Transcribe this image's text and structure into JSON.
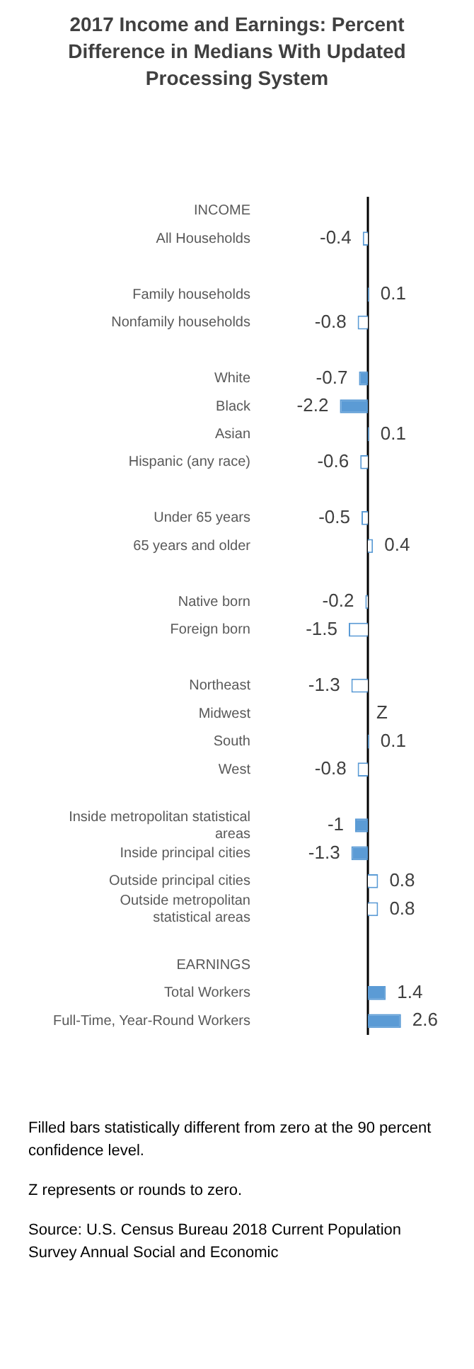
{
  "chart_data": {
    "type": "bar",
    "orientation": "horizontal",
    "title": "2017 Income and Earnings: Percent Difference in Medians With Updated Processing System",
    "categories": [
      "INCOME",
      "All Households",
      null,
      "Family households",
      "Nonfamily households",
      null,
      "White",
      "Black",
      "Asian",
      "Hispanic (any race)",
      null,
      "Under 65 years",
      "65 years and older",
      null,
      "Native born",
      "Foreign born",
      null,
      "Northeast",
      "Midwest",
      "South",
      "West",
      null,
      "Inside metropolitan statistical areas",
      "Inside principal cities",
      "Outside principal cities",
      "Outside metropolitan statistical areas",
      null,
      "EARNINGS",
      "Total Workers",
      "Full-Time, Year-Round Workers"
    ],
    "values": [
      null,
      -0.4,
      null,
      0.1,
      -0.8,
      null,
      -0.7,
      -2.2,
      0.1,
      -0.6,
      null,
      -0.5,
      0.4,
      null,
      -0.2,
      -1.5,
      null,
      -1.3,
      null,
      0.1,
      -0.8,
      null,
      -1,
      -1.3,
      0.8,
      0.8,
      null,
      null,
      1.4,
      2.6
    ],
    "value_labels": [
      null,
      "-0.4",
      null,
      "0.1",
      "-0.8",
      null,
      "-0.7",
      "-2.2",
      "0.1",
      "-0.6",
      null,
      "-0.5",
      "0.4",
      null,
      "-0.2",
      "-1.5",
      null,
      "-1.3",
      "Z",
      "0.1",
      "-0.8",
      null,
      "-1",
      "-1.3",
      "0.8",
      "0.8",
      null,
      null,
      "1.4",
      "2.6"
    ],
    "color": "#5b9bd5",
    "colors": [
      null,
      "#ffffff",
      null,
      "#5b9bd5",
      "#ffffff",
      null,
      "#5b9bd5",
      "#5b9bd5",
      "#5b9bd5",
      "#ffffff",
      null,
      "#ffffff",
      "#ffffff",
      null,
      "#ffffff",
      "#ffffff",
      null,
      "#ffffff",
      null,
      "#5b9bd5",
      "#ffffff",
      null,
      "#5b9bd5",
      "#5b9bd5",
      "#ffffff",
      "#ffffff",
      null,
      null,
      "#5b9bd5",
      "#5b9bd5"
    ],
    "tick_labels": "y",
    "grid": false,
    "legend": false,
    "ref_lines": [
      {
        "axis": "x",
        "value": 0,
        "color": "#000000"
      }
    ],
    "annotations": [
      "Filled bars statistically different from zero at the 90 percent confidence level.",
      "Z represents or rounds to zero.",
      "Source: U.S. Census Bureau 2018 Current Population Survey Annual Social and Economic"
    ]
  }
}
